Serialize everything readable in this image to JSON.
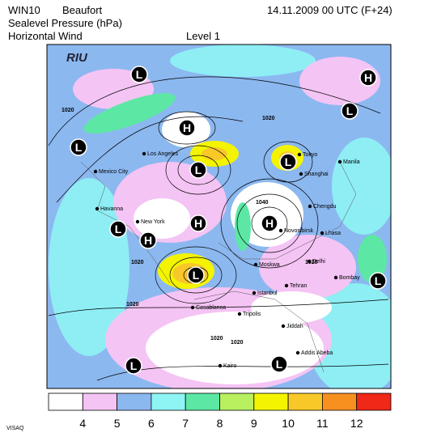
{
  "header": {
    "model": "WIN10",
    "unit": "Beaufort",
    "date": "14.11.2009 00 UTC (F+24)",
    "field": "Sealevel Pressure (hPa)",
    "wind": "Horizontal Wind",
    "level": "Level  1"
  },
  "logo": "RIU",
  "centers": [
    "L",
    "H",
    "L",
    "L",
    "H",
    "L",
    "L",
    "H",
    "H",
    "L",
    "H",
    "L",
    "L",
    "L",
    "L"
  ],
  "cities": [
    "Los Angeles",
    "Mexico City",
    "Havanna",
    "New York",
    "Tokyo",
    "Manila",
    "Shanghai",
    "Chengdu",
    "Lhasa",
    "Delhi",
    "Bombay",
    "Moskwa",
    "Novosibirsk",
    "Tehran",
    "Istanbul",
    "Tripolis",
    "Casablanca",
    "Jiddah",
    "Addis Abeba",
    "Kairo"
  ],
  "isobar_labels": [
    1020,
    1020,
    1020,
    1020,
    1020,
    1020,
    1040,
    1020
  ],
  "colorbar": {
    "levels": [
      4,
      5,
      6,
      7,
      8,
      9,
      10,
      11,
      12
    ],
    "colors": [
      "#ffffff",
      "#f4c4f4",
      "#8cb8f0",
      "#8ef4f4",
      "#5ce8a4",
      "#b8f060",
      "#f4f400",
      "#f8c828",
      "#f89020",
      "#f02818"
    ]
  },
  "footer": "VISAQ"
}
